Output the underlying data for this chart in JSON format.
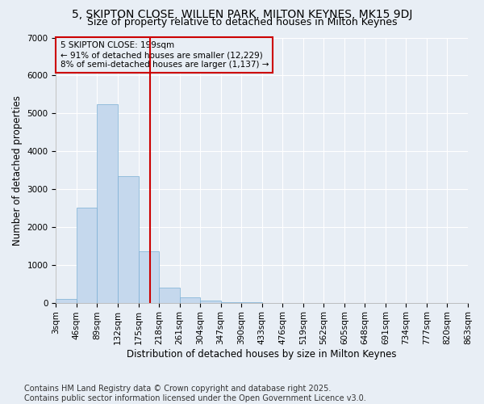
{
  "title1": "5, SKIPTON CLOSE, WILLEN PARK, MILTON KEYNES, MK15 9DJ",
  "title2": "Size of property relative to detached houses in Milton Keynes",
  "xlabel": "Distribution of detached houses by size in Milton Keynes",
  "ylabel": "Number of detached properties",
  "bar_color": "#c5d8ed",
  "bar_edge_color": "#7aafd4",
  "bg_color": "#e8eef5",
  "grid_color": "#ffffff",
  "vline_color": "#cc0000",
  "vline_x": 199,
  "annotation_text": "5 SKIPTON CLOSE: 199sqm\n← 91% of detached houses are smaller (12,229)\n8% of semi-detached houses are larger (1,137) →",
  "annotation_box_color": "#cc0000",
  "bin_edges": [
    3,
    46,
    89,
    132,
    175,
    218,
    261,
    304,
    347,
    390,
    433,
    476,
    519,
    562,
    605,
    648,
    691,
    734,
    777,
    820,
    863
  ],
  "bar_heights": [
    100,
    2500,
    5250,
    3350,
    1350,
    390,
    140,
    50,
    20,
    5,
    2,
    1,
    1,
    0,
    0,
    0,
    0,
    0,
    0,
    0
  ],
  "tick_labels": [
    "3sqm",
    "46sqm",
    "89sqm",
    "132sqm",
    "175sqm",
    "218sqm",
    "261sqm",
    "304sqm",
    "347sqm",
    "390sqm",
    "433sqm",
    "476sqm",
    "519sqm",
    "562sqm",
    "605sqm",
    "648sqm",
    "691sqm",
    "734sqm",
    "777sqm",
    "820sqm",
    "863sqm"
  ],
  "ylim": [
    0,
    7000
  ],
  "yticks": [
    0,
    1000,
    2000,
    3000,
    4000,
    5000,
    6000,
    7000
  ],
  "footer": "Contains HM Land Registry data © Crown copyright and database right 2025.\nContains public sector information licensed under the Open Government Licence v3.0.",
  "title_fontsize": 10,
  "subtitle_fontsize": 9,
  "axis_label_fontsize": 8.5,
  "tick_fontsize": 7.5,
  "footer_fontsize": 7
}
